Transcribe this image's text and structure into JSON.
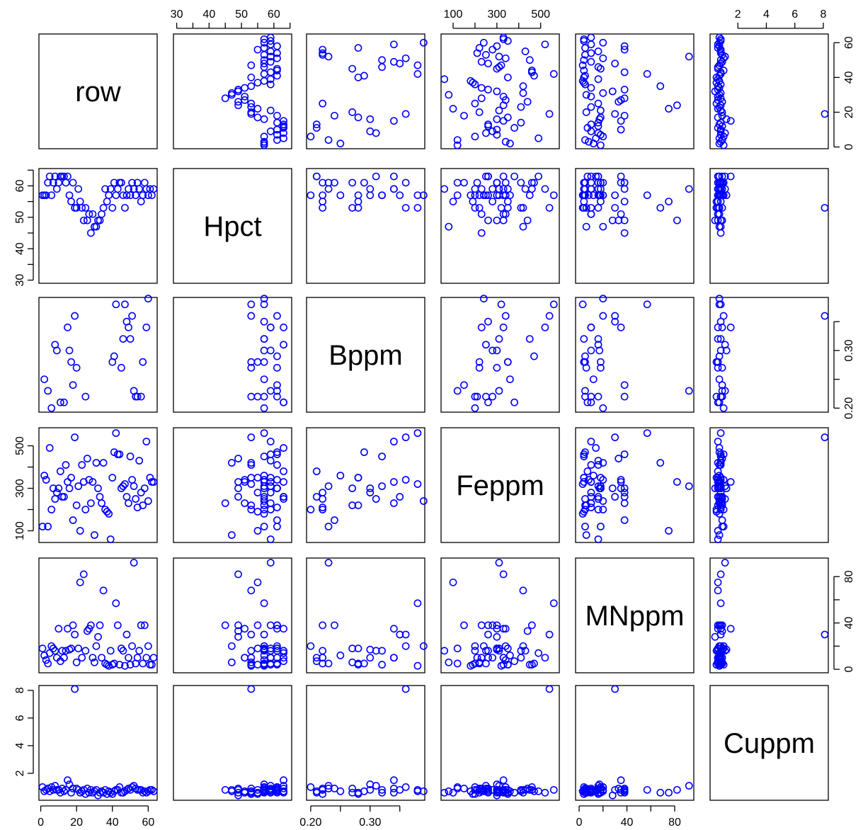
{
  "chart_data": {
    "type": "scatter-matrix",
    "title": "",
    "point_color": "#0000ff",
    "variables": [
      "row",
      "Hpct",
      "Bppm",
      "Feppm",
      "MNppm",
      "Cuppm"
    ],
    "axes": {
      "row": {
        "lim": [
          -1,
          65
        ],
        "ticks": [
          0,
          20,
          40,
          60
        ],
        "tick_labels": [
          "0",
          "20",
          "40",
          "60"
        ],
        "side": "bottom",
        "side2": "right"
      },
      "Hpct": {
        "lim": [
          29,
          65.5
        ],
        "ticks": [
          30,
          35,
          40,
          45,
          50,
          55,
          60,
          65
        ],
        "tick_labels": [
          "30",
          "",
          "40",
          "",
          "50",
          "",
          "60",
          ""
        ],
        "side": "top",
        "side2": "left"
      },
      "Bppm": {
        "lim": [
          0.193,
          0.392
        ],
        "ticks": [
          0.2,
          0.25,
          0.3,
          0.35
        ],
        "tick_labels": [
          "0.20",
          "",
          "0.30",
          ""
        ],
        "side": "bottom",
        "side2": "right"
      },
      "Feppm": {
        "lim": [
          45,
          585
        ],
        "ticks": [
          100,
          200,
          300,
          400,
          500
        ],
        "tick_labels": [
          "100",
          "",
          "300",
          "",
          "500"
        ],
        "side": "top",
        "side2": "left"
      },
      "MNppm": {
        "lim": [
          -3,
          96
        ],
        "ticks": [
          0,
          20,
          40,
          60,
          80
        ],
        "tick_labels": [
          "0",
          "",
          "40",
          "",
          "80"
        ],
        "side": "bottom",
        "side2": "right"
      },
      "Cuppm": {
        "lim": [
          0.05,
          8.35
        ],
        "ticks": [
          2,
          4,
          6,
          8
        ],
        "tick_labels": [
          "2",
          "4",
          "6",
          "8"
        ],
        "side": "top",
        "side2": "left"
      }
    },
    "data": {
      "row": [
        1,
        2,
        3,
        4,
        5,
        6,
        7,
        8,
        9,
        10,
        11,
        12,
        13,
        14,
        15,
        16,
        17,
        18,
        19,
        20,
        21,
        22,
        23,
        24,
        25,
        26,
        27,
        28,
        29,
        30,
        31,
        32,
        33,
        34,
        35,
        36,
        37,
        38,
        39,
        40,
        41,
        42,
        43,
        44,
        45,
        46,
        47,
        48,
        49,
        50,
        51,
        52,
        53,
        54,
        55,
        56,
        57,
        58,
        59,
        60,
        61,
        62,
        63
      ],
      "Hpct": [
        57,
        57,
        57,
        61,
        63,
        57,
        61,
        63,
        59,
        61,
        63,
        63,
        63,
        61,
        63,
        57,
        55,
        61,
        53,
        53,
        59,
        55,
        53,
        49,
        53,
        49,
        51,
        45,
        51,
        47,
        47,
        49,
        49,
        51,
        53,
        59,
        55,
        57,
        59,
        53,
        61,
        57,
        59,
        61,
        61,
        57,
        53,
        57,
        59,
        57,
        61,
        59,
        57,
        61,
        59,
        55,
        57,
        61,
        59,
        57,
        59,
        57,
        59
      ],
      "Bppm": [
        null,
        0.25,
        null,
        0.23,
        null,
        0.2,
        null,
        0.31,
        0.3,
        null,
        0.21,
        null,
        0.21,
        null,
        0.34,
        0.3,
        0.28,
        0.24,
        0.36,
        0.27,
        null,
        null,
        null,
        null,
        0.22,
        null,
        null,
        null,
        null,
        null,
        null,
        null,
        null,
        null,
        null,
        null,
        null,
        null,
        null,
        0.28,
        0.29,
        0.38,
        null,
        null,
        0.27,
        0.32,
        0.38,
        0.35,
        0.34,
        0.32,
        0.36,
        0.23,
        0.22,
        0.22,
        null,
        0.22,
        0.28,
        null,
        0.34,
        0.39,
        null,
        null,
        null
      ],
      "Feppm": [
        120,
        360,
        340,
        120,
        490,
        200,
        300,
        250,
        280,
        300,
        380,
        260,
        260,
        410,
        330,
        300,
        350,
        150,
        540,
        220,
        310,
        100,
        410,
        330,
        200,
        440,
        340,
        230,
        330,
        80,
        420,
        300,
        260,
        230,
        420,
        200,
        190,
        180,
        60,
        350,
        470,
        560,
        460,
        460,
        300,
        310,
        320,
        260,
        230,
        450,
        340,
        310,
        250,
        210,
        430,
        280,
        220,
        300,
        520,
        240,
        350,
        330,
        330
      ],
      "MNppm": [
        18,
        12,
        8,
        5,
        14,
        20,
        18,
        16,
        10,
        35,
        7,
        16,
        10,
        16,
        35,
        17,
        18,
        38,
        30,
        6,
        18,
        75,
        10,
        82,
        16,
        33,
        35,
        38,
        10,
        6,
        20,
        28,
        38,
        10,
        68,
        5,
        4,
        3,
        16,
        4,
        5,
        57,
        38,
        4,
        18,
        16,
        3,
        30,
        10,
        4,
        20,
        92,
        5,
        10,
        16,
        38,
        5,
        38,
        10,
        20,
        4,
        4,
        10
      ],
      "Cuppm": [
        1.0,
        0.7,
        0.8,
        0.9,
        0.7,
        1.0,
        0.8,
        1.1,
        0.8,
        0.8,
        0.6,
        0.9,
        0.7,
        0.8,
        1.5,
        1.2,
        0.6,
        0.9,
        8.1,
        0.9,
        0.8,
        0.6,
        0.7,
        0.8,
        0.5,
        0.9,
        0.6,
        0.8,
        0.6,
        0.7,
        0.8,
        0.4,
        0.6,
        0.7,
        0.6,
        0.8,
        0.5,
        0.7,
        0.6,
        0.5,
        0.7,
        0.8,
        0.8,
        1.0,
        0.6,
        0.6,
        0.7,
        0.8,
        0.9,
        0.8,
        1.0,
        1.1,
        0.9,
        0.8,
        0.8,
        0.8,
        0.6,
        0.7,
        0.6,
        0.7,
        0.8,
        0.8,
        0.7
      ]
    }
  }
}
